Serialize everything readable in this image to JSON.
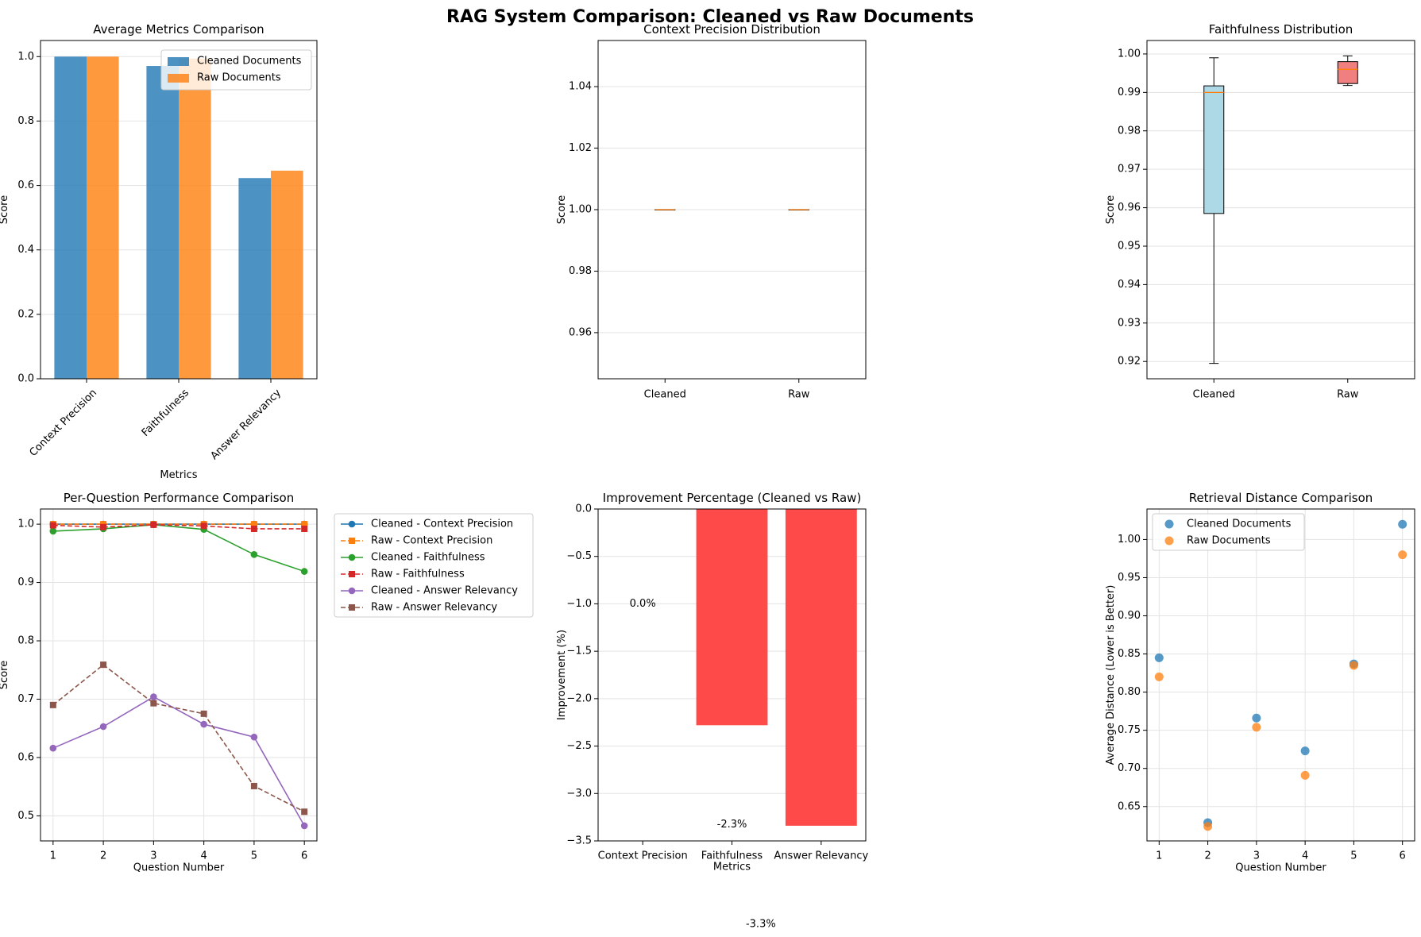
{
  "suptitle": "RAG System Comparison: Cleaned vs Raw Documents",
  "colors": {
    "blue": "#1f77b4",
    "orange": "#ff7f0e",
    "green": "#2ca02c",
    "red": "#d62728",
    "purple": "#9467bd",
    "brown": "#8c564b",
    "lightblue": "#add8e6",
    "lightcoral": "#f08080",
    "negbar": "#ff4a4a"
  },
  "chart_data": [
    {
      "id": "avg",
      "type": "bar",
      "title": "Average Metrics Comparison",
      "xlabel": "Metrics",
      "ylabel": "Score",
      "categories": [
        "Context Precision",
        "Faithfulness",
        "Answer Relevancy"
      ],
      "series": [
        {
          "name": "Cleaned Documents",
          "values": [
            1.0,
            0.971,
            0.623
          ]
        },
        {
          "name": "Raw Documents",
          "values": [
            1.0,
            0.994,
            0.646
          ]
        }
      ],
      "ylim": [
        0,
        1.05
      ],
      "yticks": [
        0.0,
        0.2,
        0.4,
        0.6,
        0.8,
        1.0
      ],
      "ytick_labels": [
        "0.0",
        "0.2",
        "0.4",
        "0.6",
        "0.8",
        "1.0"
      ],
      "legend": "top-right",
      "grid": true
    },
    {
      "id": "cpbox",
      "type": "box",
      "title": "Context Precision Distribution",
      "ylabel": "Score",
      "categories": [
        "Cleaned",
        "Raw"
      ],
      "boxes": [
        {
          "min": 1.0,
          "q1": 1.0,
          "median": 1.0,
          "q3": 1.0,
          "max": 1.0
        },
        {
          "min": 1.0,
          "q1": 1.0,
          "median": 1.0,
          "q3": 1.0,
          "max": 1.0
        }
      ],
      "ylim": [
        0.945,
        1.055
      ],
      "yticks": [
        0.96,
        0.98,
        1.0,
        1.02,
        1.04
      ],
      "ytick_labels": [
        "0.96",
        "0.98",
        "1.00",
        "1.02",
        "1.04"
      ],
      "grid": true
    },
    {
      "id": "fbox",
      "type": "box",
      "title": "Faithfulness Distribution",
      "ylabel": "Score",
      "categories": [
        "Cleaned",
        "Raw"
      ],
      "boxes": [
        {
          "min": 0.9195,
          "q1": 0.9585,
          "median": 0.99,
          "q3": 0.9917,
          "max": 0.999
        },
        {
          "min": 0.9918,
          "q1": 0.9923,
          "median": 0.996,
          "q3": 0.998,
          "max": 0.9995
        }
      ],
      "ylim": [
        0.9155,
        1.0035
      ],
      "yticks": [
        0.92,
        0.93,
        0.94,
        0.95,
        0.96,
        0.97,
        0.98,
        0.99,
        1.0
      ],
      "ytick_labels": [
        "0.92",
        "0.93",
        "0.94",
        "0.95",
        "0.96",
        "0.97",
        "0.98",
        "0.99",
        "1.00"
      ],
      "grid": true
    },
    {
      "id": "perq",
      "type": "line",
      "title": "Per-Question Performance Comparison",
      "xlabel": "Question Number",
      "ylabel": "Score",
      "x": [
        1,
        2,
        3,
        4,
        5,
        6
      ],
      "series": [
        {
          "name": "Cleaned - Context Precision",
          "values": [
            1.0,
            1.0,
            1.0,
            1.0,
            1.0,
            1.0
          ]
        },
        {
          "name": "Raw - Context Precision",
          "values": [
            1.0,
            1.0,
            1.0,
            1.0,
            1.0,
            1.0
          ]
        },
        {
          "name": "Cleaned - Faithfulness",
          "values": [
            0.988,
            0.992,
            0.999,
            0.991,
            0.948,
            0.919
          ]
        },
        {
          "name": "Raw - Faithfulness",
          "values": [
            0.998,
            0.995,
            0.999,
            0.997,
            0.992,
            0.992
          ]
        },
        {
          "name": "Cleaned - Answer Relevancy",
          "values": [
            0.616,
            0.653,
            0.704,
            0.657,
            0.635,
            0.483
          ]
        },
        {
          "name": "Raw - Answer Relevancy",
          "values": [
            0.69,
            0.759,
            0.693,
            0.675,
            0.551,
            0.507
          ]
        }
      ],
      "xlim": [
        0.75,
        6.25
      ],
      "ylim": [
        0.457,
        1.026
      ],
      "yticks": [
        0.5,
        0.6,
        0.7,
        0.8,
        0.9,
        1.0
      ],
      "ytick_labels": [
        "0.5",
        "0.6",
        "0.7",
        "0.8",
        "0.9",
        "1.0"
      ],
      "legend": "outside-right",
      "grid": true
    },
    {
      "id": "impr",
      "type": "bar",
      "title": "Improvement Percentage (Cleaned vs Raw)",
      "xlabel": "Metrics",
      "ylabel": "Improvement (%)",
      "categories": [
        "Context Precision",
        "Faithfulness",
        "Answer Relevancy"
      ],
      "values": [
        0.0,
        -2.28,
        -3.34
      ],
      "data_labels": [
        "0.0%",
        "-2.3%",
        "-3.3%"
      ],
      "ylim": [
        -3.5,
        0.0
      ],
      "yticks": [
        -3.5,
        -3.0,
        -2.5,
        -2.0,
        -1.5,
        -1.0,
        -0.5,
        0.0
      ],
      "ytick_labels": [
        "−3.5",
        "−3.0",
        "−2.5",
        "−2.0",
        "−1.5",
        "−1.0",
        "−0.5",
        "0.0"
      ],
      "grid": true
    },
    {
      "id": "dist",
      "type": "scatter",
      "title": "Retrieval Distance Comparison",
      "xlabel": "Question Number",
      "ylabel": "Average Distance (Lower is Better)",
      "x": [
        1,
        2,
        3,
        4,
        5,
        6
      ],
      "series": [
        {
          "name": "Cleaned Documents",
          "values": [
            0.845,
            0.629,
            0.766,
            0.723,
            0.837,
            1.02
          ]
        },
        {
          "name": "Raw Documents",
          "values": [
            0.82,
            0.624,
            0.754,
            0.691,
            0.835,
            0.98
          ]
        }
      ],
      "xlim": [
        0.75,
        6.25
      ],
      "ylim": [
        0.605,
        1.04
      ],
      "yticks": [
        0.65,
        0.7,
        0.75,
        0.8,
        0.85,
        0.9,
        0.95,
        1.0
      ],
      "ytick_labels": [
        "0.65",
        "0.70",
        "0.75",
        "0.80",
        "0.85",
        "0.90",
        "0.95",
        "1.00"
      ],
      "legend": "top-left",
      "grid": true
    }
  ]
}
